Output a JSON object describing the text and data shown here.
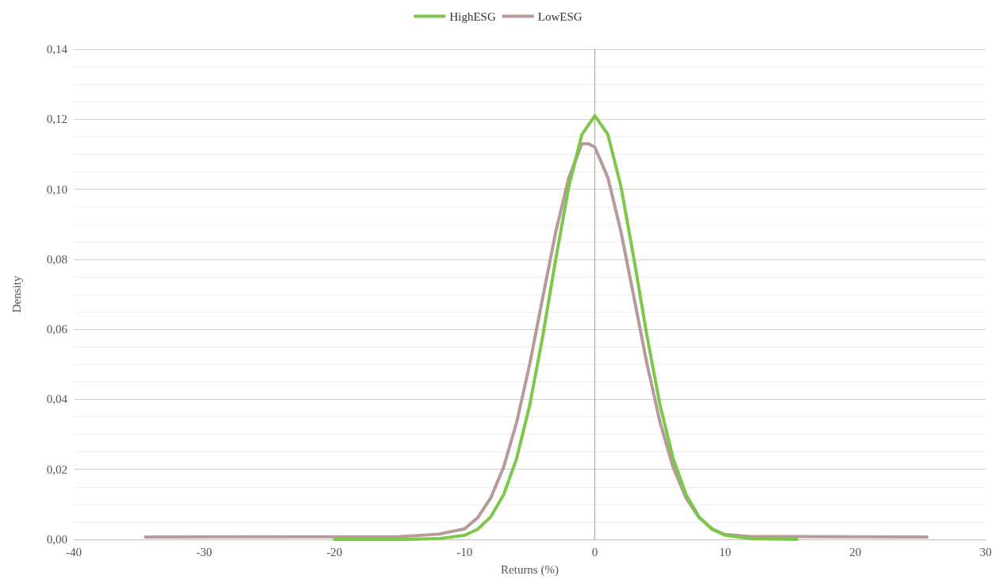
{
  "chart_data": {
    "type": "line",
    "xlabel": "Returns (%)",
    "ylabel": "Density",
    "xlim": [
      -40,
      30
    ],
    "xticks": [
      -40,
      -30,
      -20,
      -10,
      0,
      10,
      20,
      30
    ],
    "ylim": [
      0,
      0.14
    ],
    "yticks": [
      {
        "value": 0,
        "label": "0,00"
      },
      {
        "value": 0.02,
        "label": "0,02"
      },
      {
        "value": 0.04,
        "label": "0,04"
      },
      {
        "value": 0.06,
        "label": "0,06"
      },
      {
        "value": 0.08,
        "label": "0,08"
      },
      {
        "value": 0.1,
        "label": "0,10"
      },
      {
        "value": 0.12,
        "label": "0,12"
      },
      {
        "value": 0.14,
        "label": "0,14"
      }
    ],
    "grid": "y",
    "legend": "top",
    "marker": "none",
    "line_style": "solid",
    "ref_lines": [
      {
        "axis": "x",
        "value": 0,
        "color": "#a6a6a6"
      }
    ],
    "series": [
      {
        "name": "HighESG",
        "color": "#7dc84a",
        "x": [
          -20,
          -15,
          -12,
          -10,
          -9,
          -8,
          -7,
          -6,
          -5,
          -4,
          -3,
          -2,
          -1,
          0,
          1,
          2,
          3,
          4,
          5,
          6,
          7,
          8,
          9,
          10,
          12,
          15.5
        ],
        "values": [
          0,
          0,
          0.0002,
          0.0012,
          0.0029,
          0.0064,
          0.0128,
          0.0232,
          0.0384,
          0.0581,
          0.0801,
          0.1008,
          0.1156,
          0.121,
          0.1156,
          0.1008,
          0.0801,
          0.0581,
          0.0384,
          0.0232,
          0.0128,
          0.0064,
          0.0029,
          0.0012,
          0.0002,
          0
        ]
      },
      {
        "name": "LowESG",
        "color": "#b89a9a",
        "x": [
          -34.5,
          -15,
          -12,
          -10,
          -9,
          -8,
          -7,
          -6,
          -5,
          -4,
          -3,
          -2,
          -1,
          -0.5,
          0,
          1,
          2,
          3,
          4,
          5,
          6,
          7,
          8,
          9,
          10,
          12,
          25.5
        ],
        "values": [
          0.0007,
          0.0008,
          0.0015,
          0.003,
          0.0062,
          0.0118,
          0.0207,
          0.0335,
          0.0501,
          0.0691,
          0.0879,
          0.1033,
          0.113,
          0.113,
          0.112,
          0.1033,
          0.0879,
          0.0691,
          0.0501,
          0.0335,
          0.0207,
          0.0118,
          0.0062,
          0.003,
          0.0014,
          0.0008,
          0.0007
        ]
      }
    ]
  }
}
